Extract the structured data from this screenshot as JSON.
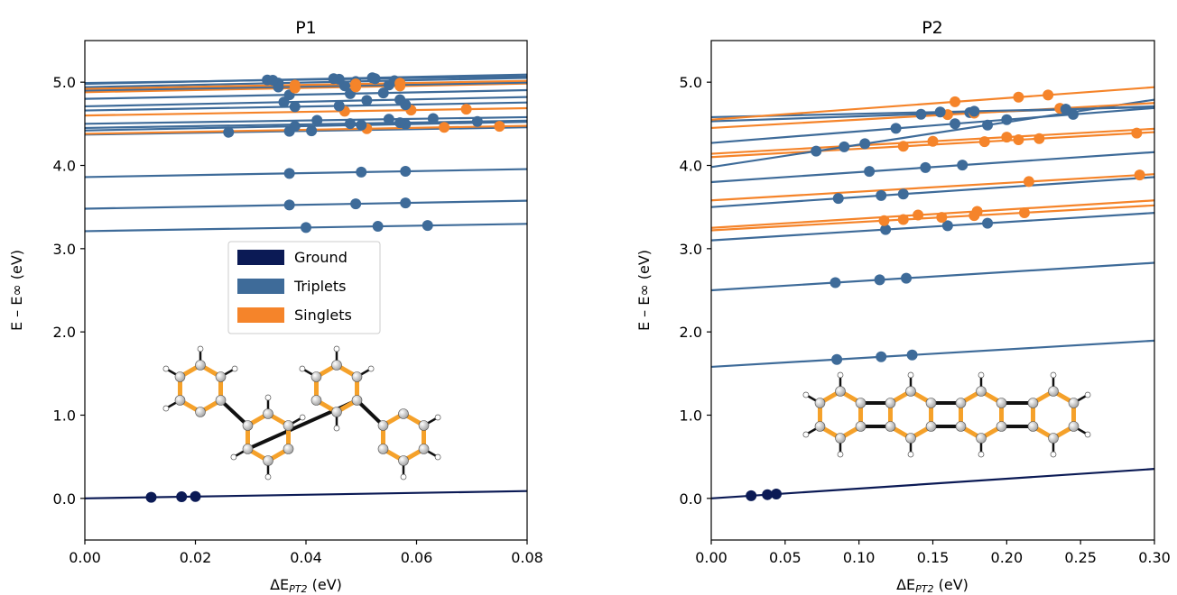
{
  "colors": {
    "ground": "#0b1a55",
    "triplet": "#3e6b99",
    "singlet": "#f5842a"
  },
  "legend": {
    "entries": [
      {
        "label": "Ground",
        "color": "#0b1a55"
      },
      {
        "label": "Triplets",
        "color": "#3e6b99"
      },
      {
        "label": "Singlets",
        "color": "#f5842a"
      }
    ]
  },
  "chart_data": [
    {
      "type": "scatter",
      "title": "P1",
      "xlabel": "ΔE",
      "xlabel_sub": "PT2",
      "xlabel_unit": " (eV)",
      "ylabel": "E – E∞ (eV)",
      "xlim": [
        0,
        0.08
      ],
      "ylim": [
        -0.5,
        5.5
      ],
      "xticks": [
        0.0,
        0.02,
        0.04,
        0.06,
        0.08
      ],
      "xtick_labels": [
        "0.00",
        "0.02",
        "0.04",
        "0.06",
        "0.08"
      ],
      "yticks": [
        0,
        1,
        2,
        3,
        4,
        5
      ],
      "ytick_labels": [
        "0.0",
        "1.0",
        "2.0",
        "3.0",
        "4.0",
        "5.0"
      ],
      "legend_position": "center",
      "series": [
        {
          "kind": "ground",
          "intercept": 0.0,
          "slope": 1.1,
          "x": [
            0.012,
            0.0175,
            0.02
          ]
        },
        {
          "kind": "triplet",
          "intercept": 3.21,
          "slope": 1.1,
          "x": [
            0.04,
            0.053,
            0.062
          ]
        },
        {
          "kind": "triplet",
          "intercept": 3.48,
          "slope": 1.2,
          "x": [
            0.037,
            0.049,
            0.058
          ]
        },
        {
          "kind": "triplet",
          "intercept": 3.86,
          "slope": 1.2,
          "x": [
            0.037,
            0.05,
            0.058
          ]
        },
        {
          "kind": "triplet",
          "intercept": 4.37,
          "slope": 1.1,
          "x": [
            0.026,
            0.037,
            0.041
          ]
        },
        {
          "kind": "singlet",
          "intercept": 4.38,
          "slope": 1.2,
          "x": [
            0.051,
            0.065,
            0.075
          ]
        },
        {
          "kind": "triplet",
          "intercept": 4.42,
          "slope": 1.3,
          "x": [
            0.038,
            0.05,
            0.058
          ]
        },
        {
          "kind": "triplet",
          "intercept": 4.45,
          "slope": 1.1,
          "x": [
            0.048,
            0.057,
            0.071
          ]
        },
        {
          "kind": "triplet",
          "intercept": 4.5,
          "slope": 1.0,
          "x": [
            0.042,
            0.055,
            0.063
          ]
        },
        {
          "kind": "singlet",
          "intercept": 4.6,
          "slope": 1.1,
          "x": [
            0.047,
            0.059,
            0.069
          ]
        },
        {
          "kind": "triplet",
          "intercept": 4.66,
          "slope": 1.2,
          "x": [
            0.038,
            0.046,
            0.058
          ]
        },
        {
          "kind": "triplet",
          "intercept": 4.71,
          "slope": 1.4,
          "x": [
            0.036,
            0.051,
            0.057
          ]
        },
        {
          "kind": "triplet",
          "intercept": 4.8,
          "slope": 1.3,
          "x": [
            0.037,
            0.048,
            0.054
          ]
        },
        {
          "kind": "singlet",
          "intercept": 4.88,
          "slope": 1.3,
          "x": [
            0.038,
            0.049,
            0.057
          ]
        },
        {
          "kind": "triplet",
          "intercept": 4.9,
          "slope": 1.2,
          "x": [
            0.035,
            0.047,
            0.055
          ]
        },
        {
          "kind": "triplet",
          "intercept": 4.94,
          "slope": 1.4,
          "x": [
            0.035,
            0.049,
            0.056
          ]
        },
        {
          "kind": "singlet",
          "intercept": 4.92,
          "slope": 1.2,
          "x": [
            0.038,
            0.049,
            0.057
          ]
        },
        {
          "kind": "triplet",
          "intercept": 4.98,
          "slope": 1.4,
          "x": [
            0.033,
            0.045,
            0.052
          ]
        },
        {
          "kind": "triplet",
          "intercept": 4.99,
          "slope": 1.0,
          "x": [
            0.034,
            0.046,
            0.0525
          ]
        }
      ]
    },
    {
      "type": "scatter",
      "title": "P2",
      "xlabel": "ΔE",
      "xlabel_sub": "PT2",
      "xlabel_unit": " (eV)",
      "ylabel": "E – E∞ (eV)",
      "xlim": [
        0,
        0.3
      ],
      "ylim": [
        -0.5,
        5.5
      ],
      "xticks": [
        0.0,
        0.05,
        0.1,
        0.15,
        0.2,
        0.25,
        0.3
      ],
      "xtick_labels": [
        "0.00",
        "0.05",
        "0.10",
        "0.15",
        "0.20",
        "0.25",
        "0.30"
      ],
      "yticks": [
        0,
        1,
        2,
        3,
        4,
        5
      ],
      "ytick_labels": [
        "0.0",
        "1.0",
        "2.0",
        "3.0",
        "4.0",
        "5.0"
      ],
      "series": [
        {
          "kind": "ground",
          "intercept": 0.0,
          "slope": 1.18,
          "x": [
            0.027,
            0.038,
            0.044
          ]
        },
        {
          "kind": "triplet",
          "intercept": 1.58,
          "slope": 1.05,
          "x": [
            0.085,
            0.115,
            0.136
          ]
        },
        {
          "kind": "triplet",
          "intercept": 2.5,
          "slope": 1.1,
          "x": [
            0.084,
            0.114,
            0.132
          ]
        },
        {
          "kind": "triplet",
          "intercept": 3.1,
          "slope": 1.1,
          "x": [
            0.118,
            0.16,
            0.187
          ]
        },
        {
          "kind": "singlet",
          "intercept": 3.22,
          "slope": 1.0,
          "x": [
            0.117,
            0.13,
            0.156,
            0.178,
            0.212
          ]
        },
        {
          "kind": "singlet",
          "intercept": 3.25,
          "slope": 1.1,
          "x": [
            0.14,
            0.18
          ]
        },
        {
          "kind": "triplet",
          "intercept": 3.5,
          "slope": 1.2,
          "x": [
            0.086,
            0.115,
            0.13
          ]
        },
        {
          "kind": "singlet",
          "intercept": 3.58,
          "slope": 1.05,
          "x": [
            0.215,
            0.29
          ]
        },
        {
          "kind": "triplet",
          "intercept": 3.8,
          "slope": 1.2,
          "x": [
            0.107,
            0.145,
            0.17
          ]
        },
        {
          "kind": "singlet",
          "intercept": 4.1,
          "slope": 1.0,
          "x": [
            0.13,
            0.185,
            0.208,
            0.222,
            0.288
          ]
        },
        {
          "kind": "singlet",
          "intercept": 4.14,
          "slope": 1.0,
          "x": [
            0.15,
            0.2
          ]
        },
        {
          "kind": "triplet",
          "intercept": 3.98,
          "slope": 2.7,
          "x": [
            0.071,
            0.09,
            0.104,
            0.187
          ]
        },
        {
          "kind": "triplet",
          "intercept": 4.27,
          "slope": 1.4,
          "x": [
            0.125,
            0.165,
            0.2,
            0.245
          ]
        },
        {
          "kind": "triplet",
          "intercept": 4.53,
          "slope": 0.6,
          "x": [
            0.142,
            0.175,
            0.24
          ]
        },
        {
          "kind": "singlet",
          "intercept": 4.45,
          "slope": 1.0,
          "x": [
            0.16,
            0.178,
            0.236
          ]
        },
        {
          "kind": "triplet",
          "intercept": 4.58,
          "slope": 0.4,
          "x": [
            0.155,
            0.178,
            0.24
          ]
        },
        {
          "kind": "singlet",
          "intercept": 4.55,
          "slope": 1.3,
          "x": [
            0.165,
            0.208,
            0.228
          ]
        }
      ]
    }
  ]
}
